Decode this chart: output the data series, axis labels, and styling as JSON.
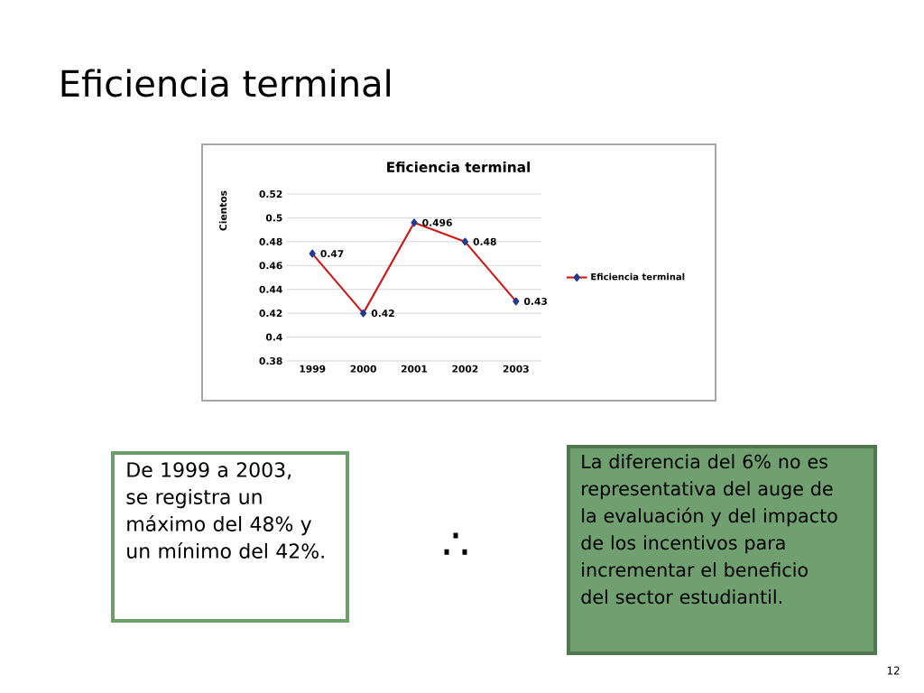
{
  "chart_data": {
    "type": "line",
    "title": "Eficiencia terminal",
    "ylabel": "Cientos",
    "categories": [
      "1999",
      "2000",
      "2001",
      "2002",
      "2003"
    ],
    "series": [
      {
        "name": "Eficiencia terminal",
        "color": "#cc1a1a",
        "values": [
          0.47,
          0.42,
          0.496,
          0.48,
          0.43
        ]
      }
    ],
    "ylim": [
      0.38,
      0.52
    ],
    "yticks": [
      0.38,
      0.4,
      0.42,
      0.44,
      0.46,
      0.48,
      0.5,
      0.52
    ],
    "grid": "y",
    "legend": "right",
    "marker": "diamond",
    "data_labels": true,
    "annotations": [
      "Eficiencia terminal",
      "De 1999 a 2003, se registra un máximo del 48% y un mínimo del 42%.",
      "∴",
      "La diferencia del 6% no es representativa del auge de la evaluación y del impacto de los incentivos para incrementar el beneficio del sector estudiantil.",
      "12"
    ]
  }
}
